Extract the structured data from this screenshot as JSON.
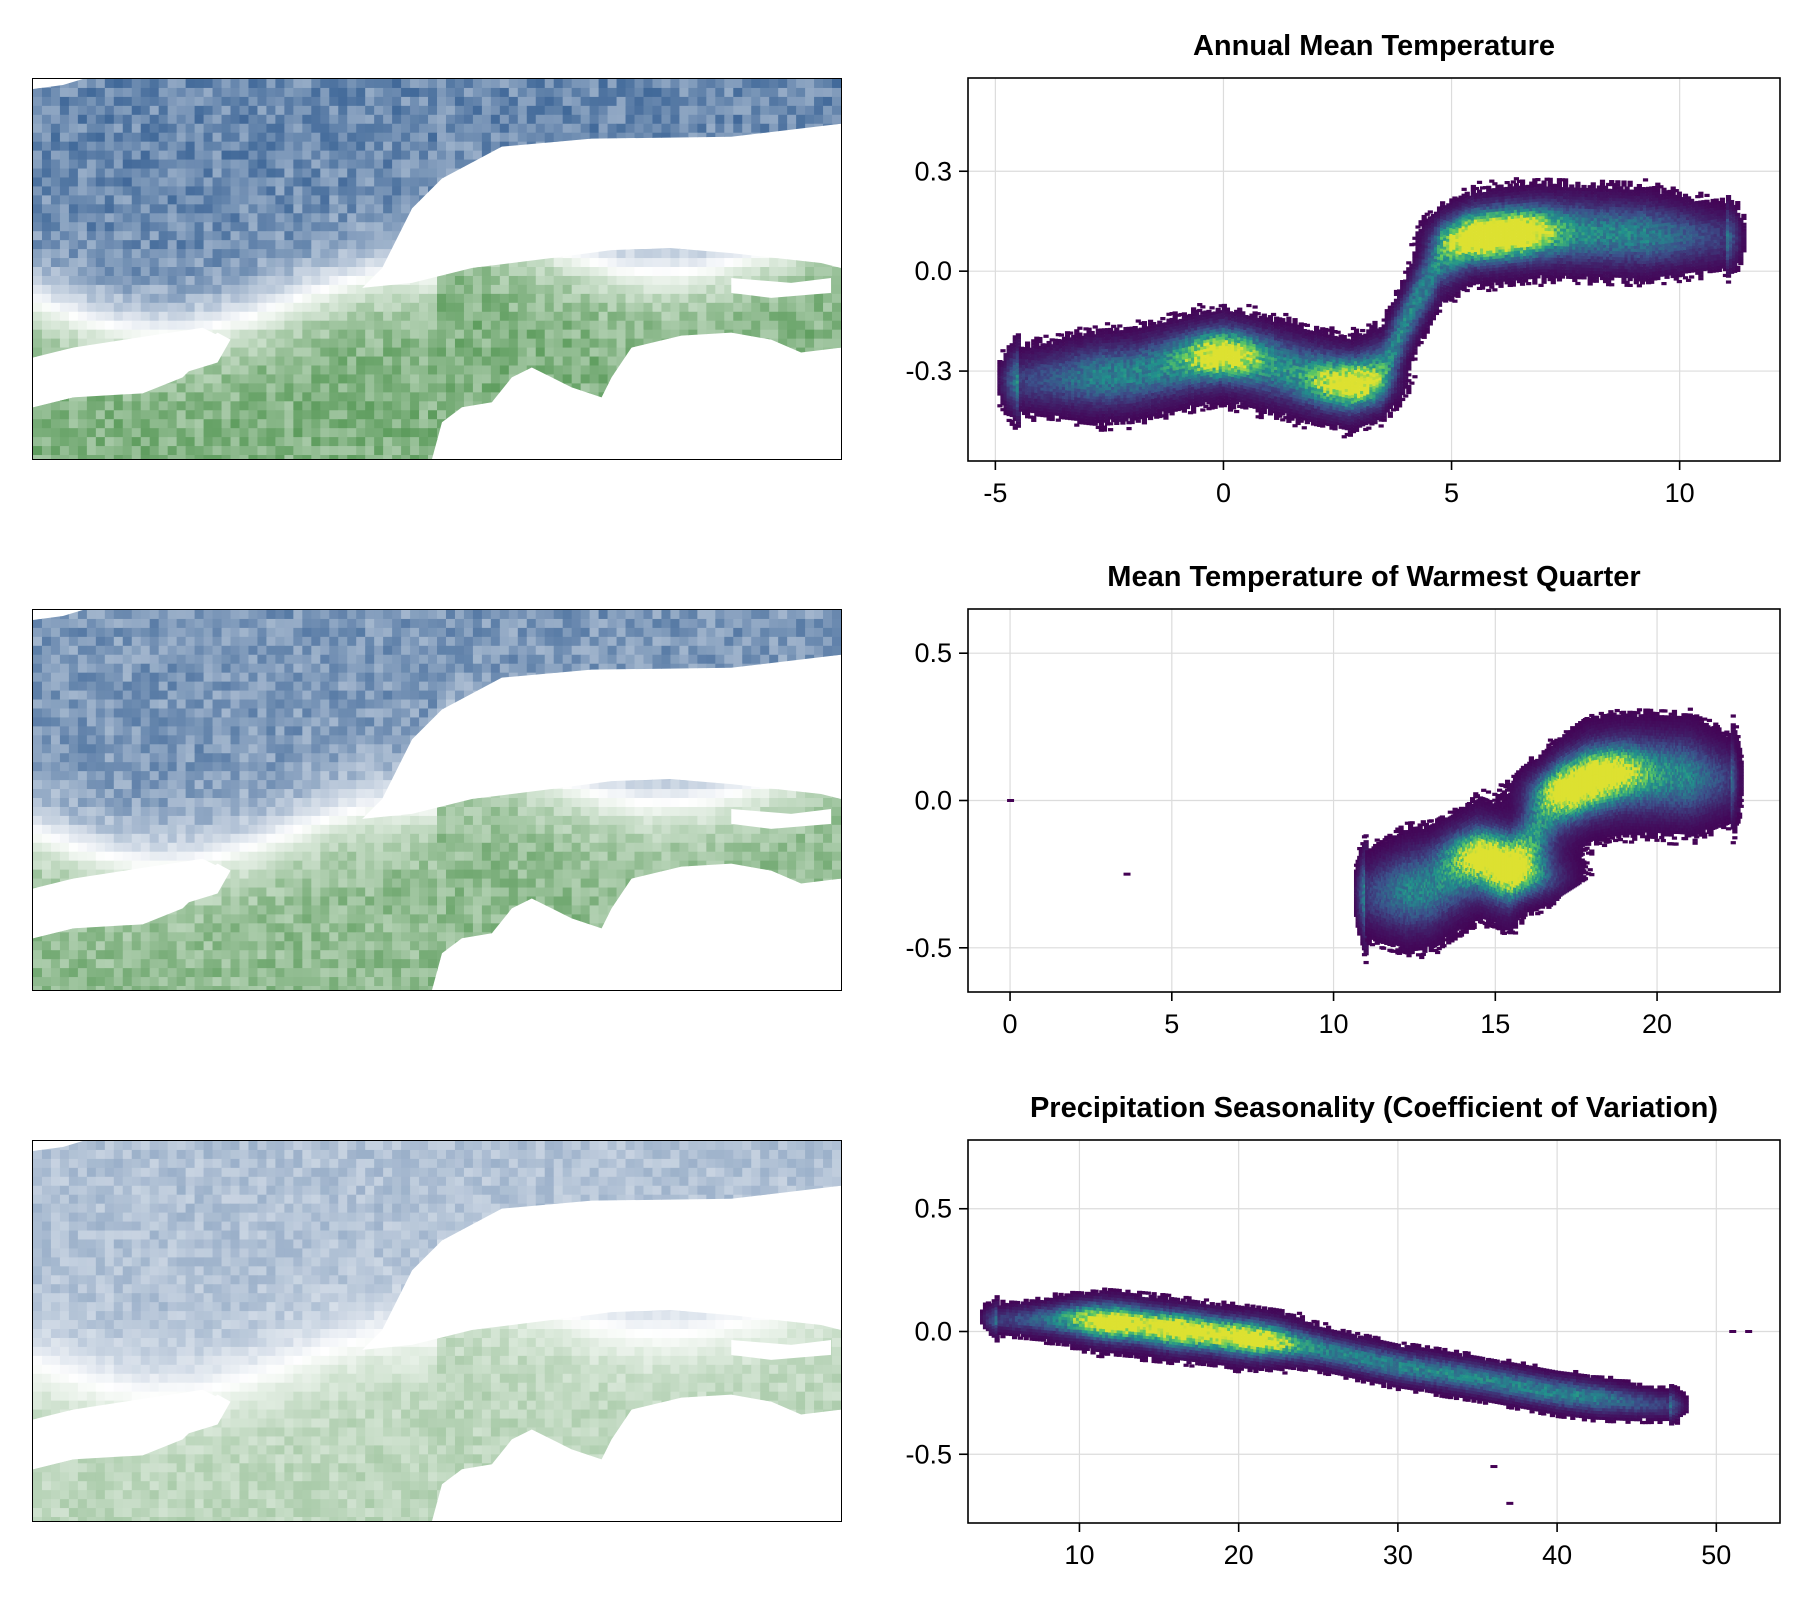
{
  "maps": [
    {
      "name": "annual-mean-temperature-map",
      "low_color": "#1f4e87",
      "high_color": "#3f8a3f",
      "intensity": 0.85
    },
    {
      "name": "warmest-quarter-temperature-map",
      "low_color": "#1f4e87",
      "high_color": "#3f8a3f",
      "intensity": 0.75
    },
    {
      "name": "precipitation-seasonality-map",
      "low_color": "#1f4e87",
      "high_color": "#3f8a3f",
      "intensity": 0.45
    }
  ],
  "chart_data": [
    {
      "type": "heatmap",
      "title": "Annual Mean Temperature",
      "xlabel": "",
      "ylabel": "",
      "xlim": [
        -5.6,
        12.2
      ],
      "ylim": [
        -0.57,
        0.58
      ],
      "xticks": [
        -5,
        0,
        5,
        10
      ],
      "xtick_labels": [
        "-5",
        "0",
        "5",
        "10"
      ],
      "yticks": [
        -0.3,
        0.0,
        0.3
      ],
      "ytick_labels": [
        "-0.3",
        "0.0",
        "0.3"
      ],
      "grid": true,
      "ridge": [
        [
          -4.5,
          -0.33
        ],
        [
          -2,
          -0.31
        ],
        [
          0,
          -0.25
        ],
        [
          1.5,
          -0.3
        ],
        [
          2.8,
          -0.34
        ],
        [
          3.5,
          -0.3
        ],
        [
          4.2,
          -0.1
        ],
        [
          4.8,
          0.04
        ],
        [
          5.5,
          0.1
        ],
        [
          7,
          0.12
        ],
        [
          9,
          0.11
        ],
        [
          11,
          0.1
        ]
      ],
      "spread": 0.07,
      "density_peaks": [
        [
          0,
          -0.25
        ],
        [
          5.5,
          0.1
        ],
        [
          6.5,
          0.12
        ],
        [
          2.8,
          -0.34
        ]
      ],
      "colormap": [
        "#440154",
        "#3b528b",
        "#21918c",
        "#5ec962",
        "#fde725"
      ]
    },
    {
      "type": "heatmap",
      "title": "Mean Temperature of Warmest Quarter",
      "xlabel": "",
      "ylabel": "",
      "xlim": [
        -1.3,
        23.8
      ],
      "ylim": [
        -0.65,
        0.65
      ],
      "xticks": [
        0,
        5,
        10,
        15,
        20
      ],
      "xtick_labels": [
        "0",
        "5",
        "10",
        "15",
        "20"
      ],
      "yticks": [
        -0.5,
        0.0,
        0.5
      ],
      "ytick_labels": [
        "-0.5",
        "0.0",
        "0.5"
      ],
      "grid": true,
      "ridge": [
        [
          11,
          -0.32
        ],
        [
          13,
          -0.3
        ],
        [
          14.5,
          -0.2
        ],
        [
          15.5,
          -0.24
        ],
        [
          16.2,
          -0.12
        ],
        [
          17,
          0.0
        ],
        [
          18,
          0.07
        ],
        [
          19,
          0.09
        ],
        [
          21,
          0.08
        ],
        [
          22.3,
          0.07
        ]
      ],
      "spread": 0.1,
      "density_peaks": [
        [
          14.8,
          -0.18
        ],
        [
          17.2,
          0.03
        ],
        [
          18.5,
          0.1
        ],
        [
          16,
          -0.26
        ]
      ],
      "outliers": [
        [
          0,
          0
        ],
        [
          3.6,
          -0.25
        ]
      ],
      "colormap": [
        "#440154",
        "#3b528b",
        "#21918c",
        "#5ec962",
        "#fde725"
      ]
    },
    {
      "type": "heatmap",
      "title": "Precipitation Seasonality (Coefficient of Variation)",
      "xlabel": "",
      "ylabel": "",
      "xlim": [
        3,
        54
      ],
      "ylim": [
        -0.78,
        0.78
      ],
      "xticks": [
        10,
        20,
        30,
        40,
        50
      ],
      "xtick_labels": [
        "10",
        "20",
        "30",
        "40",
        "50"
      ],
      "yticks": [
        -0.5,
        0.0,
        0.5
      ],
      "ytick_labels": [
        "-0.5",
        "0.0",
        "0.5"
      ],
      "grid": true,
      "ridge": [
        [
          5,
          0.05
        ],
        [
          10,
          0.05
        ],
        [
          15,
          0.02
        ],
        [
          20,
          -0.02
        ],
        [
          25,
          -0.07
        ],
        [
          30,
          -0.14
        ],
        [
          35,
          -0.19
        ],
        [
          40,
          -0.25
        ],
        [
          45,
          -0.29
        ],
        [
          47,
          -0.3
        ]
      ],
      "spread": 0.045,
      "density_peaks": [
        [
          16.5,
          0.0
        ],
        [
          12,
          0.04
        ],
        [
          21,
          -0.03
        ]
      ],
      "outliers": [
        [
          51,
          0.0
        ],
        [
          52,
          0.0
        ],
        [
          36,
          -0.55
        ],
        [
          37,
          -0.7
        ]
      ],
      "colormap": [
        "#440154",
        "#3b528b",
        "#21918c",
        "#5ec962",
        "#fde725"
      ]
    }
  ]
}
